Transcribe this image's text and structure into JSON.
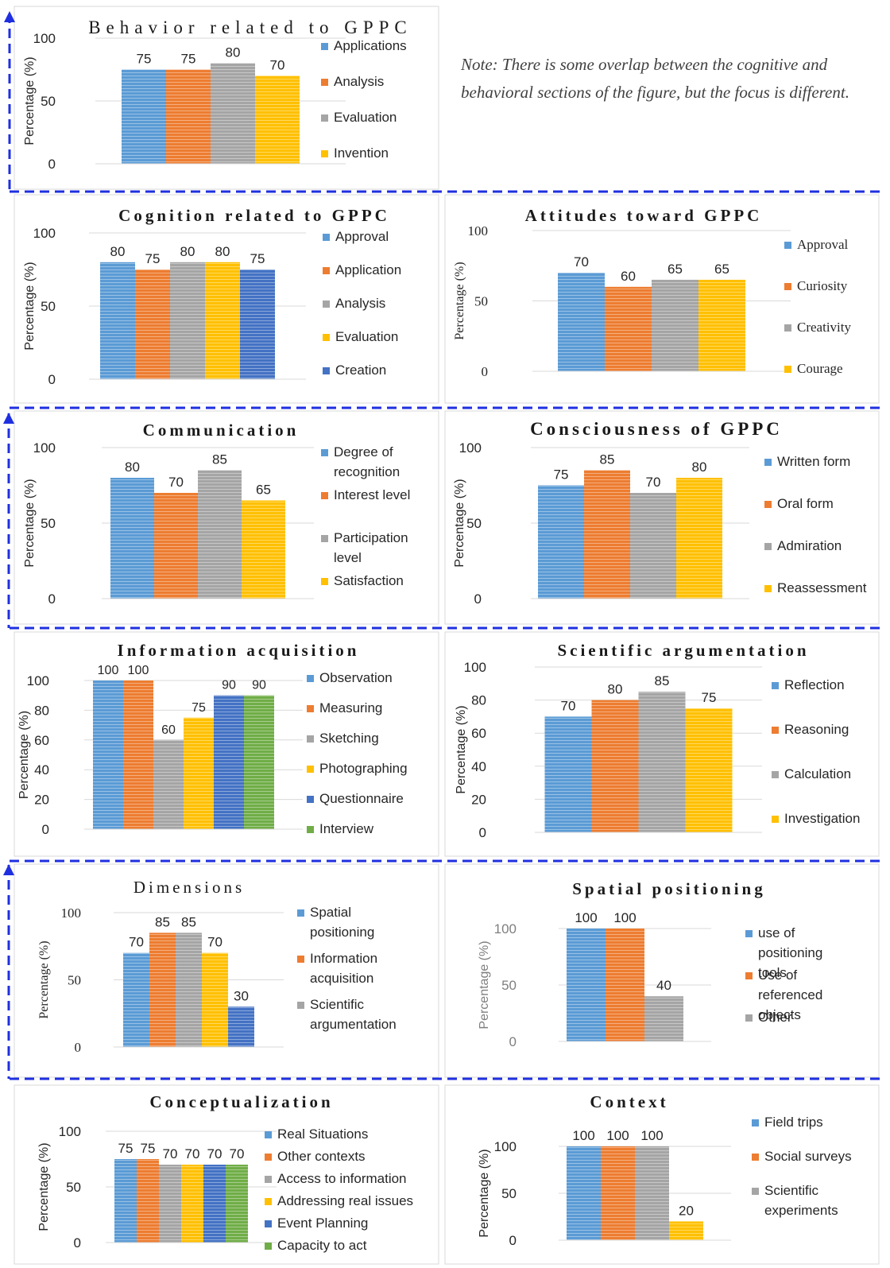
{
  "note": "Note: There is some overlap between the cognitive and behavioral sections of the figure, but the focus is different.",
  "colors": {
    "blue": "#5b9bd5",
    "orange": "#ed7d31",
    "gray": "#a5a5a5",
    "yellow": "#ffc000",
    "darkblue": "#4472c4",
    "green": "#70ad47",
    "frame_dash": "#1f2fe0"
  },
  "chart_data": [
    {
      "id": "behavior",
      "type": "bar",
      "title": "Behavior related to GPPC",
      "ylabel": "Percentage (%)",
      "ylim": [
        0,
        100
      ],
      "yticks": [
        0,
        50,
        100
      ],
      "categories": [
        "Applications",
        "Analysis",
        "Evaluation",
        "Invention"
      ],
      "values": [
        75,
        75,
        80,
        70
      ],
      "colors": [
        "blue",
        "orange",
        "gray",
        "yellow"
      ],
      "legend_position": "right"
    },
    {
      "id": "cognition",
      "type": "bar",
      "title": "Cognition related to GPPC",
      "ylabel": "Percentage (%)",
      "ylim": [
        0,
        100
      ],
      "yticks": [
        0,
        50,
        100
      ],
      "categories": [
        "Approval",
        "Application",
        "Analysis",
        "Evaluation",
        "Creation"
      ],
      "values": [
        80,
        75,
        80,
        80,
        75
      ],
      "colors": [
        "blue",
        "orange",
        "gray",
        "yellow",
        "darkblue"
      ],
      "legend_position": "right"
    },
    {
      "id": "attitudes",
      "type": "bar",
      "title": "Attitudes toward GPPC",
      "ylabel": "Percentage (%)",
      "ylim": [
        0,
        100
      ],
      "yticks": [
        0,
        50,
        100
      ],
      "categories": [
        "Approval",
        "Curiosity",
        "Creativity",
        "Courage"
      ],
      "values": [
        70,
        60,
        65,
        65
      ],
      "colors": [
        "blue",
        "orange",
        "gray",
        "yellow"
      ],
      "legend_position": "right"
    },
    {
      "id": "communication",
      "type": "bar",
      "title": "Communication",
      "ylabel": "Percentage (%)",
      "ylim": [
        0,
        100
      ],
      "yticks": [
        0,
        50,
        100
      ],
      "categories": [
        "Degree of recognition",
        "Interest level",
        "Participation level",
        "Satisfaction"
      ],
      "values": [
        80,
        70,
        85,
        65
      ],
      "colors": [
        "blue",
        "orange",
        "gray",
        "yellow"
      ],
      "legend_position": "right"
    },
    {
      "id": "consciousness",
      "type": "bar",
      "title": "Consciousness of GPPC",
      "ylabel": "Percentage (%)",
      "ylim": [
        0,
        100
      ],
      "yticks": [
        0,
        50,
        100
      ],
      "categories": [
        "Written form",
        "Oral form",
        "Admiration",
        "Reassessment"
      ],
      "values": [
        75,
        85,
        70,
        80
      ],
      "colors": [
        "blue",
        "orange",
        "gray",
        "yellow"
      ],
      "legend_position": "right"
    },
    {
      "id": "information",
      "type": "bar",
      "title": "Information acquisition",
      "ylabel": "Percentage (%)",
      "ylim": [
        0,
        100
      ],
      "yticks": [
        0,
        20,
        40,
        60,
        80,
        100
      ],
      "categories": [
        "Observation",
        "Measuring",
        "Sketching",
        "Photographing",
        "Questionnaire",
        "Interview"
      ],
      "values": [
        100,
        100,
        60,
        75,
        90,
        90
      ],
      "colors": [
        "blue",
        "orange",
        "gray",
        "yellow",
        "darkblue",
        "green"
      ],
      "legend_position": "right"
    },
    {
      "id": "argumentation",
      "type": "bar",
      "title": "Scientific argumentation",
      "ylabel": "Percentage (%)",
      "ylim": [
        0,
        100
      ],
      "yticks": [
        0,
        20,
        40,
        60,
        80,
        100
      ],
      "categories": [
        "Reflection",
        "Reasoning",
        "Calculation",
        "Investigation"
      ],
      "values": [
        70,
        80,
        85,
        75
      ],
      "colors": [
        "blue",
        "orange",
        "gray",
        "yellow"
      ],
      "legend_position": "right"
    },
    {
      "id": "dimensions",
      "type": "bar",
      "title": "Dimensions",
      "ylabel": "Percentage (%)",
      "ylim": [
        0,
        100
      ],
      "yticks": [
        0,
        50,
        100
      ],
      "categories": [
        "Spatial positioning",
        "Information acquisition",
        "Scientific argumentation",
        "",
        ""
      ],
      "values": [
        70,
        85,
        85,
        70,
        30
      ],
      "colors": [
        "blue",
        "orange",
        "gray",
        "yellow",
        "darkblue"
      ],
      "legend_entries": [
        "Spatial positioning",
        "Information acquisition",
        "Scientific argumentation"
      ],
      "legend_position": "right"
    },
    {
      "id": "spatial",
      "type": "bar",
      "title": "Spatial positioning",
      "ylabel": "Percentage (%)",
      "ylim": [
        0,
        100
      ],
      "yticks": [
        0,
        50,
        100
      ],
      "categories": [
        "use of positioning tools",
        "Use of referenced objects",
        "Other"
      ],
      "values": [
        100,
        100,
        40
      ],
      "colors": [
        "blue",
        "orange",
        "gray"
      ],
      "legend_position": "right"
    },
    {
      "id": "conceptualization",
      "type": "bar",
      "title": "Conceptualization",
      "ylabel": "Percentage (%)",
      "ylim": [
        0,
        100
      ],
      "yticks": [
        0,
        50,
        100
      ],
      "categories": [
        "Real Situations",
        "Other contexts",
        "Access to information",
        "Addressing real issues",
        "Event Planning",
        "Capacity to act"
      ],
      "values": [
        75,
        75,
        70,
        70,
        70,
        70
      ],
      "colors": [
        "blue",
        "orange",
        "gray",
        "yellow",
        "darkblue",
        "green"
      ],
      "legend_position": "right"
    },
    {
      "id": "context",
      "type": "bar",
      "title": "Context",
      "ylabel": "Percentage (%)",
      "ylim": [
        0,
        100
      ],
      "yticks": [
        0,
        50,
        100
      ],
      "categories": [
        "Field trips",
        "Social surveys",
        "Scientific experiments",
        ""
      ],
      "values": [
        100,
        100,
        100,
        20
      ],
      "colors": [
        "blue",
        "orange",
        "gray",
        "yellow"
      ],
      "legend_entries": [
        "Field trips",
        "Social surveys",
        "Scientific experiments"
      ],
      "legend_position": "right"
    }
  ]
}
